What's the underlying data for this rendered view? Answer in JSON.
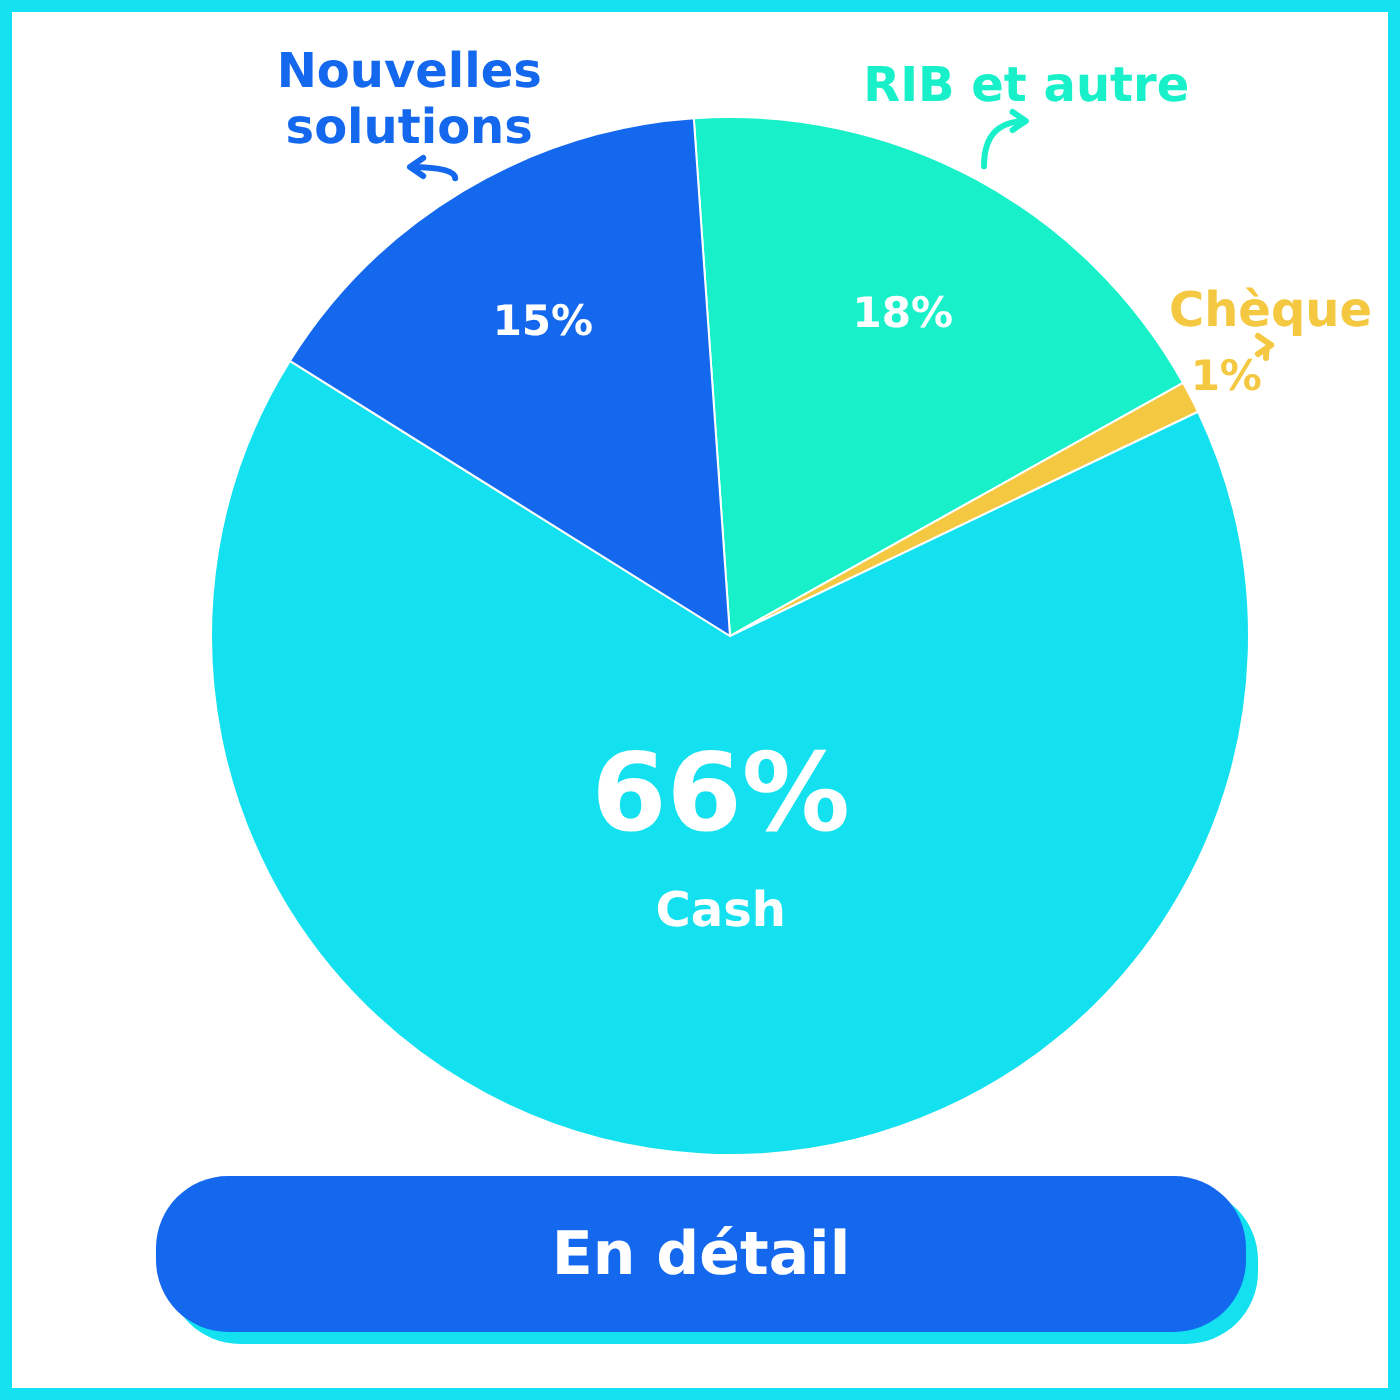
{
  "chart_data": {
    "type": "pie",
    "categories": [
      "RIB et autre",
      "Chèque",
      "Cash",
      "Nouvelles solutions"
    ],
    "values": [
      18,
      1,
      66,
      15
    ],
    "colors": [
      "#17f0c8",
      "#f5c842",
      "#14e1ef",
      "#1468ee"
    ],
    "value_labels": [
      "18%",
      "1%",
      "66%",
      "15%"
    ],
    "annotations": [
      "En détail"
    ]
  }
}
